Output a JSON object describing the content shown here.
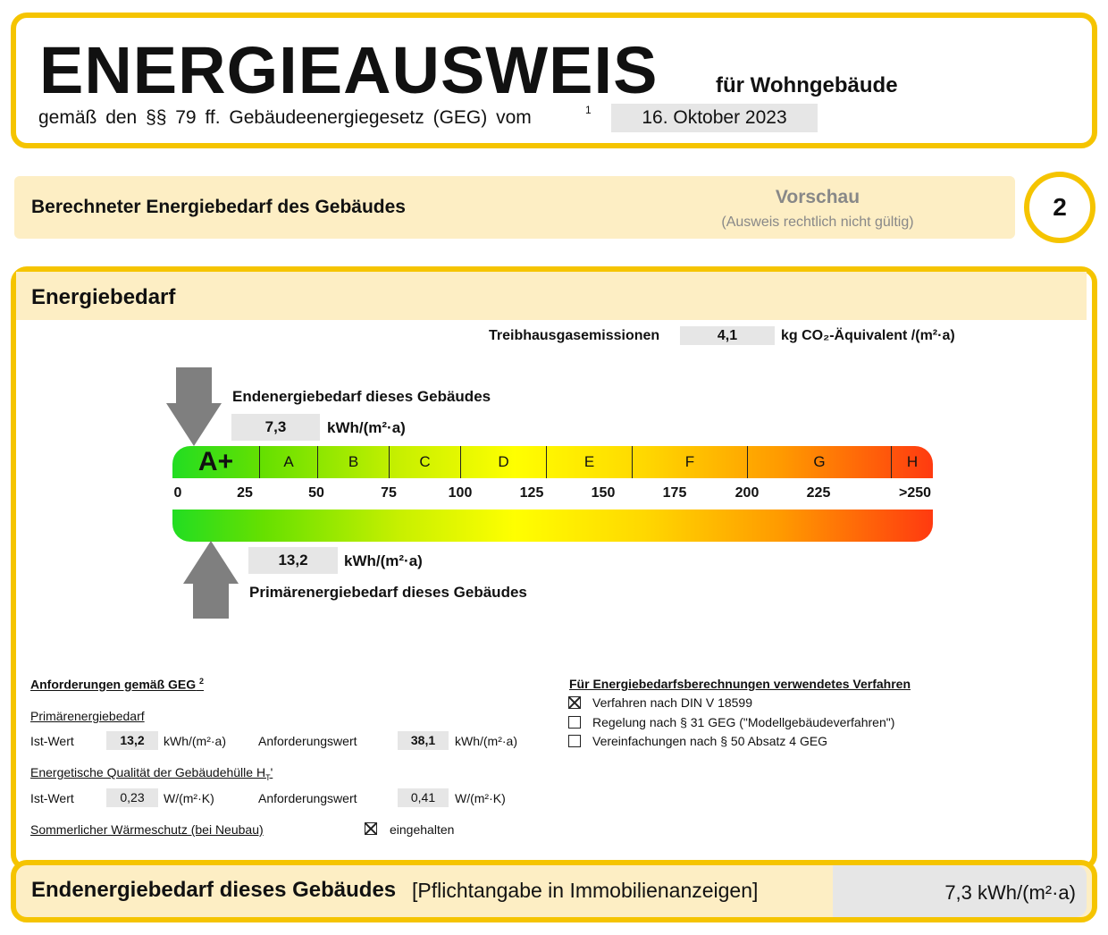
{
  "header": {
    "title": "ENERGIEAUSWEIS",
    "subtitle": "für Wohngebäude",
    "legal": "gemäß den §§ 79 ff. Gebäudeenergiegesetz (GEG) vom",
    "footnote": "1",
    "date": "16. Oktober 2023"
  },
  "section": {
    "title": "Berechneter Energiebedarf des Gebäudes",
    "preview": "Vorschau",
    "preview_note": "(Ausweis rechtlich nicht gültig)",
    "page": "2"
  },
  "energy": {
    "heading": "Energiebedarf",
    "ghg_label": "Treibhausgasemissionen",
    "ghg_value": "4,1",
    "ghg_unit": "kg CO₂-Äquivalent /(m²·a)",
    "end_label": "Endenergiebedarf dieses Gebäudes",
    "end_value": "7,3",
    "unit": "kWh/(m²·a)",
    "primary_label": "Primärenergiebedarf dieses Gebäudes",
    "primary_value": "13,2",
    "classes": [
      "A+",
      "A",
      "B",
      "C",
      "D",
      "E",
      "F",
      "G",
      "H"
    ],
    "ticks": [
      "0",
      "25",
      "50",
      "75",
      "100",
      "125",
      "150",
      "175",
      "200",
      "225",
      ">250"
    ],
    "end_value_num": 7.3,
    "primary_value_num": 13.2
  },
  "requirements": {
    "heading": "Anforderungen gemäß GEG",
    "footnote": "2",
    "primary_heading": "Primärenergiebedarf",
    "ist": "Ist-Wert",
    "anf": "Anforderungswert",
    "primary_ist": "13,2",
    "primary_anf": "38,1",
    "unit_kwh": "kWh/(m²·a)",
    "envelope_heading": "Energetische Qualität der Gebäudehülle H",
    "envelope_sub": "T",
    "envelope_suffix": "'",
    "env_ist": "0,23",
    "env_anf": "0,41",
    "unit_w": "W/(m²·K)",
    "summer_heading": "Sommerlicher Wärmeschutz (bei Neubau)",
    "summer_value": "eingehalten",
    "summer_checked": true
  },
  "method": {
    "heading": "Für Energiebedarfsberechnungen verwendetes Verfahren",
    "options": [
      {
        "label": "Verfahren nach DIN V 18599",
        "checked": true
      },
      {
        "label": "Regelung nach § 31 GEG (\"Modellgebäudeverfahren\")",
        "checked": false
      },
      {
        "label": "Vereinfachungen nach § 50 Absatz 4 GEG",
        "checked": false
      }
    ]
  },
  "footer": {
    "label": "Endenergiebedarf dieses Gebäudes",
    "note": "[Pflichtangabe in Immobilienanzeigen]",
    "value": "7,3 kWh/(m²·a)"
  }
}
